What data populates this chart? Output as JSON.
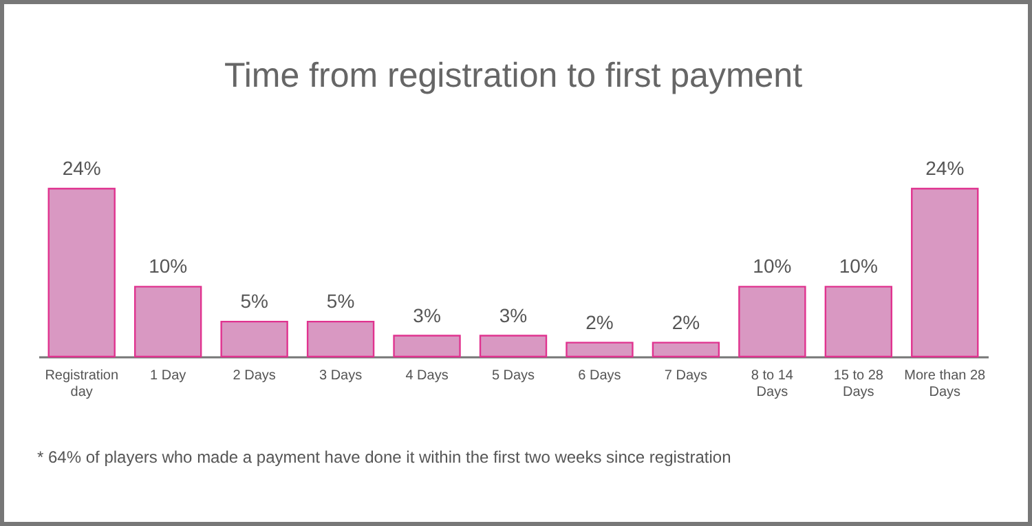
{
  "chart_data": {
    "type": "bar",
    "title": "Time from registration to first payment",
    "categories": [
      "Registration day",
      "1 Day",
      "2 Days",
      "3 Days",
      "4 Days",
      "5 Days",
      "6 Days",
      "7 Days",
      "8 to 14 Days",
      "15 to 28 Days",
      "More than 28 Days"
    ],
    "values": [
      24,
      10,
      5,
      5,
      3,
      3,
      2,
      2,
      10,
      10,
      24
    ],
    "value_labels": [
      "24%",
      "10%",
      "5%",
      "5%",
      "3%",
      "3%",
      "2%",
      "2%",
      "10%",
      "10%",
      "24%"
    ],
    "color": "#d998c2",
    "annotations": [
      "* 64% of players who made a payment have done it within the first two weeks since registration"
    ]
  }
}
